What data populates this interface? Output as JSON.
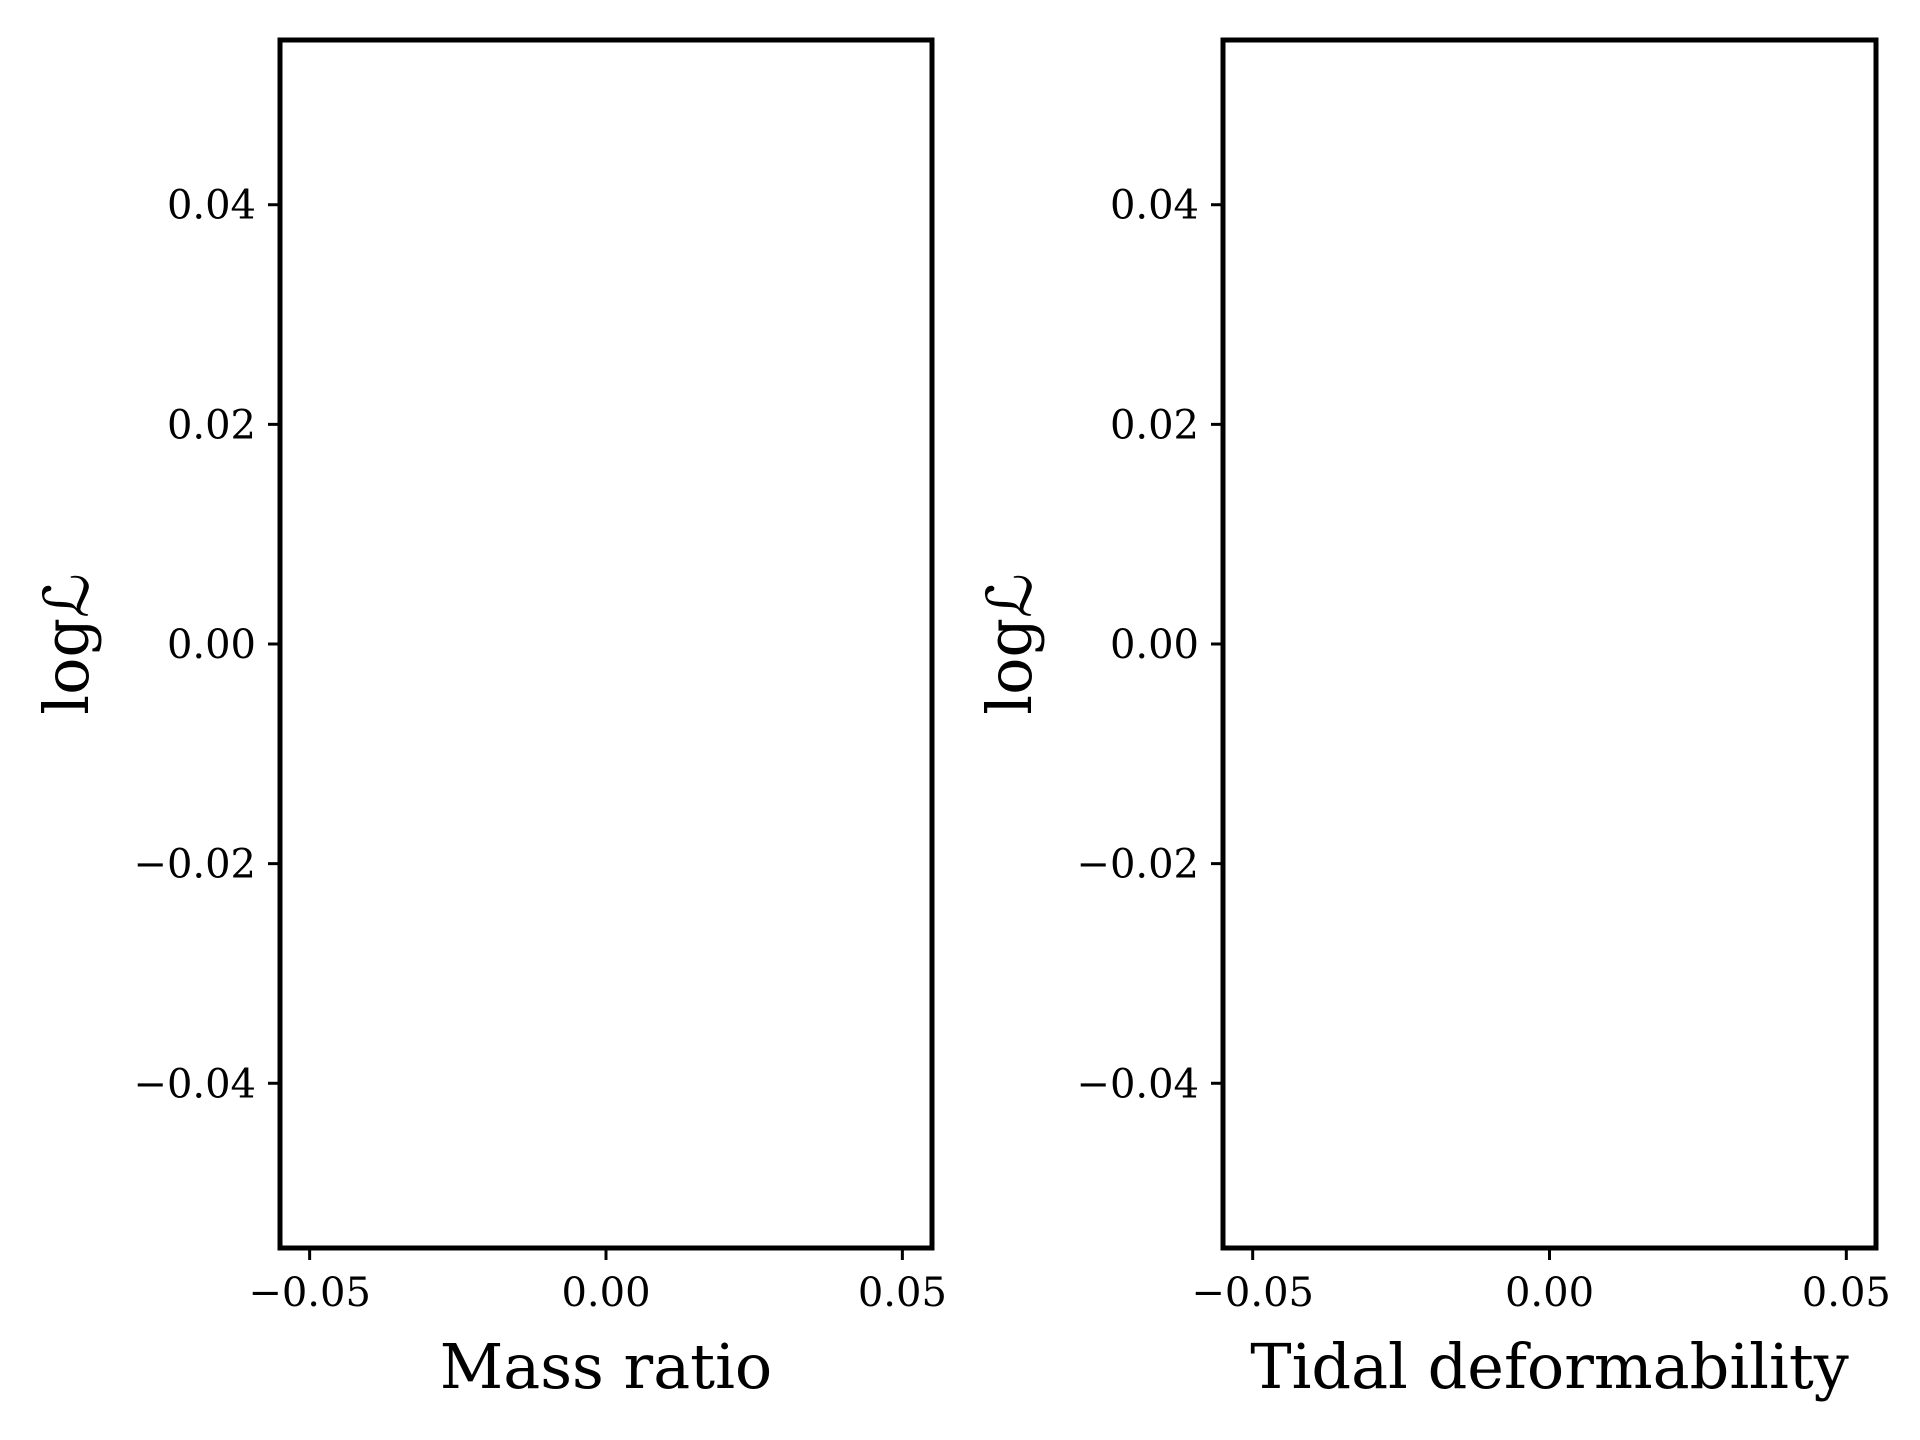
{
  "chart_data": [
    {
      "type": "line",
      "xlabel": "Mass ratio",
      "ylabel": "logℒ",
      "xlim": [
        -0.055,
        0.055
      ],
      "ylim": [
        -0.055,
        0.055
      ],
      "xticks": [
        -0.05,
        0.0,
        0.05
      ],
      "xtick_labels": [
        "−0.05",
        "0.00",
        "0.05"
      ],
      "yticks": [
        0.04,
        0.02,
        0.0,
        -0.02,
        -0.04
      ],
      "ytick_labels": [
        "0.04",
        "0.02",
        "0.00",
        "−0.02",
        "−0.04"
      ],
      "series": [],
      "grid": false,
      "legend": "none"
    },
    {
      "type": "line",
      "xlabel": "Tidal deformability",
      "ylabel": "logℒ",
      "xlim": [
        -0.055,
        0.055
      ],
      "ylim": [
        -0.055,
        0.055
      ],
      "xticks": [
        -0.05,
        0.0,
        0.05
      ],
      "xtick_labels": [
        "−0.05",
        "0.00",
        "0.05"
      ],
      "yticks": [
        0.04,
        0.02,
        0.0,
        -0.02,
        -0.04
      ],
      "ytick_labels": [
        "0.04",
        "0.02",
        "0.00",
        "−0.02",
        "−0.04"
      ],
      "series": [],
      "grid": false,
      "legend": "none"
    }
  ],
  "colors": {
    "axes": "#000000",
    "background": "#ffffff"
  }
}
